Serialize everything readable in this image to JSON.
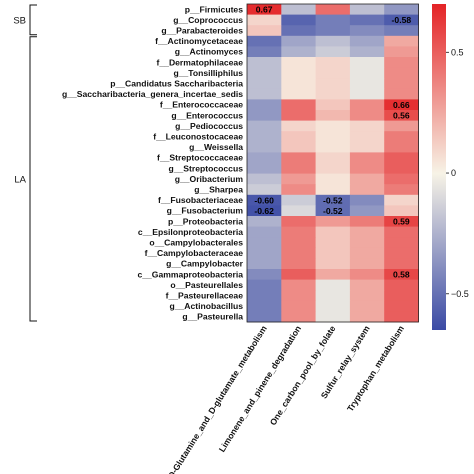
{
  "chart_data": {
    "type": "heatmap",
    "title": "",
    "groups": [
      {
        "name": "SB",
        "rows": [
          "p__Firmicutes",
          "g__Coprococcus",
          "g__Parabacteroides"
        ]
      },
      {
        "name": "LA",
        "rows": [
          "f__Actinomycetaceae",
          "g__Actinomyces",
          "f__Dermatophilaceae",
          "g__Tonsilliphilus",
          "p__Candidatus Saccharibacteria",
          "g__Saccharibacteria_genera_incertae_sedis",
          "f__Enterococcaceae",
          "g__Enterococcus",
          "g__Pediococcus",
          "f__Leuconostocaceae",
          "g__Weissella",
          "f__Streptococcaceae",
          "g__Streptococcus",
          "g__Oribacterium",
          "g__Sharpea",
          "f__Fusobacteriaceae",
          "g__Fusobacterium",
          "p__Proteobacteria",
          "c__Epsilonproteobacteria",
          "o__Campylobacterales",
          "f__Campylobacteraceae",
          "g__Campylobacter",
          "c__Gammaproteobacteria",
          "o__Pasteurellales",
          "f__Pasteurellaceae",
          "g__Actinobacillus",
          "g__Pasteurella"
        ]
      }
    ],
    "rows": [
      "p__Firmicutes",
      "g__Coprococcus",
      "g__Parabacteroides",
      "f__Actinomycetaceae",
      "g__Actinomyces",
      "f__Dermatophilaceae",
      "g__Tonsilliphilus",
      "p__Candidatus Saccharibacteria",
      "g__Saccharibacteria_genera_incertae_sedis",
      "f__Enterococcaceae",
      "g__Enterococcus",
      "g__Pediococcus",
      "f__Leuconostocaceae",
      "g__Weissella",
      "f__Streptococcaceae",
      "g__Streptococcus",
      "g__Oribacterium",
      "g__Sharpea",
      "f__Fusobacteriaceae",
      "g__Fusobacterium",
      "p__Proteobacteria",
      "c__Epsilonproteobacteria",
      "o__Campylobacterales",
      "f__Campylobacteraceae",
      "g__Campylobacter",
      "c__Gammaproteobacteria",
      "o__Pasteurellales",
      "f__Pasteurellaceae",
      "g__Actinobacillus",
      "g__Pasteurella"
    ],
    "columns": [
      "D-Glutamine_and_D-glutamate_metabolism",
      "Limonene_and_pinene_degradation",
      "One_carbon_pool_by_folate",
      "Sulfur_relay_system",
      "Tryptophan_metabolism"
    ],
    "values": [
      [
        0.67,
        -0.2,
        0.45,
        -0.2,
        -0.35
      ],
      [
        0.1,
        -0.55,
        -0.45,
        -0.5,
        -0.58
      ],
      [
        0.15,
        -0.5,
        -0.45,
        -0.4,
        -0.45
      ],
      [
        -0.5,
        -0.3,
        -0.2,
        -0.3,
        0.25
      ],
      [
        -0.45,
        -0.25,
        -0.15,
        -0.25,
        0.3
      ],
      [
        -0.2,
        0.05,
        0.1,
        -0.05,
        0.35
      ],
      [
        -0.2,
        0.05,
        0.1,
        -0.05,
        0.35
      ],
      [
        -0.2,
        0.05,
        0.1,
        -0.05,
        0.35
      ],
      [
        -0.2,
        0.05,
        0.1,
        -0.05,
        0.35
      ],
      [
        -0.35,
        0.45,
        0.15,
        0.35,
        0.66
      ],
      [
        -0.35,
        0.45,
        0.2,
        0.35,
        0.56
      ],
      [
        -0.25,
        0.1,
        0.05,
        0.1,
        0.3
      ],
      [
        -0.25,
        0.15,
        0.05,
        0.1,
        0.4
      ],
      [
        -0.25,
        0.15,
        0.05,
        0.1,
        0.4
      ],
      [
        -0.3,
        0.4,
        0.1,
        0.35,
        0.5
      ],
      [
        -0.3,
        0.4,
        0.1,
        0.35,
        0.5
      ],
      [
        -0.2,
        0.3,
        0.05,
        0.25,
        0.45
      ],
      [
        -0.15,
        0.35,
        0.05,
        0.25,
        0.4
      ],
      [
        -0.6,
        -0.15,
        -0.52,
        -0.4,
        0.1
      ],
      [
        -0.62,
        -0.1,
        -0.52,
        -0.35,
        0.15
      ],
      [
        -0.25,
        0.45,
        0.3,
        0.4,
        0.59
      ],
      [
        -0.3,
        0.4,
        0.15,
        0.25,
        0.45
      ],
      [
        -0.3,
        0.4,
        0.15,
        0.25,
        0.45
      ],
      [
        -0.3,
        0.4,
        0.15,
        0.25,
        0.45
      ],
      [
        -0.3,
        0.4,
        0.15,
        0.25,
        0.45
      ],
      [
        -0.4,
        0.5,
        0.25,
        0.35,
        0.58
      ],
      [
        -0.45,
        0.35,
        -0.05,
        0.25,
        0.5
      ],
      [
        -0.45,
        0.35,
        -0.05,
        0.25,
        0.5
      ],
      [
        -0.45,
        0.35,
        -0.05,
        0.25,
        0.5
      ],
      [
        -0.45,
        0.35,
        -0.05,
        0.25,
        0.5
      ]
    ],
    "annotations": [
      {
        "row": 0,
        "col": 0,
        "text": "0.67"
      },
      {
        "row": 1,
        "col": 4,
        "text": "-0.58"
      },
      {
        "row": 9,
        "col": 4,
        "text": "0.66"
      },
      {
        "row": 10,
        "col": 4,
        "text": "0.56"
      },
      {
        "row": 18,
        "col": 0,
        "text": "-0.60"
      },
      {
        "row": 18,
        "col": 2,
        "text": "-0.52"
      },
      {
        "row": 19,
        "col": 0,
        "text": "-0.62"
      },
      {
        "row": 19,
        "col": 2,
        "text": "-0.52"
      },
      {
        "row": 20,
        "col": 4,
        "text": "0.59"
      },
      {
        "row": 25,
        "col": 4,
        "text": "0.58"
      }
    ],
    "colorbar": {
      "range": [
        -0.65,
        0.7
      ],
      "ticks": [
        0.5,
        0,
        -0.5
      ],
      "tick_labels": [
        "0.5",
        "0",
        "−0.5"
      ],
      "colors": {
        "low": "#3a4aa5",
        "mid": "#f7f3e6",
        "high": "#e42326"
      }
    }
  }
}
